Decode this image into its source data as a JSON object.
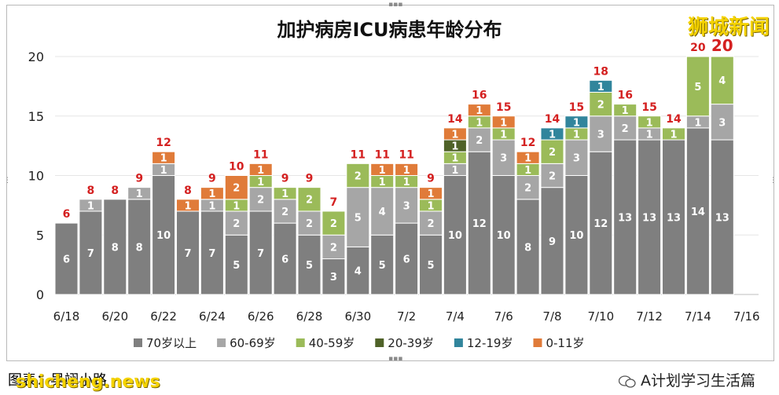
{
  "title": "加护病房ICU病患年龄分布",
  "watermark": "狮城新闻",
  "footer": {
    "source": "图表：吴翊小路",
    "site": "shicheng.news",
    "account": "A计划学习生活篇"
  },
  "colors": {
    "70+": "#7f7f7f",
    "60-69": "#a6a6a6",
    "40-59": "#9bbb59",
    "20-39": "#4f6228",
    "12-19": "#31859c",
    "0-11": "#e07b39",
    "total": "#d42020"
  },
  "chart_data": {
    "type": "bar",
    "stacked": true,
    "title": "加护病房ICU病患年龄分布",
    "ylim": [
      0,
      20
    ],
    "yticks": [
      0,
      5,
      10,
      15,
      20
    ],
    "xtick_labels": [
      "6/18",
      "6/20",
      "6/22",
      "6/24",
      "6/26",
      "6/28",
      "6/30",
      "7/2",
      "7/4",
      "7/6",
      "7/8",
      "7/10",
      "7/12",
      "7/14",
      "7/16"
    ],
    "categories": [
      "6/18",
      "6/19",
      "6/20",
      "6/21",
      "6/22",
      "6/23",
      "6/24",
      "6/25",
      "6/26",
      "6/27",
      "6/28",
      "6/29",
      "6/30",
      "7/1",
      "7/2",
      "7/3",
      "7/4",
      "7/5",
      "7/6",
      "7/7",
      "7/8",
      "7/9",
      "7/10",
      "7/11",
      "7/12",
      "7/13",
      "7/14",
      "7/15"
    ],
    "series": [
      {
        "name": "70岁以上",
        "key": "70+",
        "values": [
          6,
          7,
          8,
          8,
          10,
          7,
          7,
          5,
          7,
          6,
          5,
          3,
          4,
          5,
          6,
          5,
          10,
          12,
          10,
          8,
          9,
          10,
          12,
          13,
          13,
          13,
          14,
          13
        ]
      },
      {
        "name": "60-69岁",
        "key": "60-69",
        "values": [
          0,
          1,
          0,
          1,
          1,
          0,
          1,
          2,
          2,
          2,
          2,
          2,
          5,
          4,
          3,
          2,
          1,
          2,
          3,
          2,
          2,
          3,
          3,
          2,
          1,
          0,
          1,
          3
        ]
      },
      {
        "name": "40-59岁",
        "key": "40-59",
        "values": [
          0,
          0,
          0,
          0,
          0,
          0,
          0,
          1,
          1,
          1,
          2,
          2,
          2,
          1,
          1,
          1,
          1,
          1,
          1,
          1,
          2,
          1,
          2,
          1,
          1,
          1,
          5,
          4
        ]
      },
      {
        "name": "20-39岁",
        "key": "20-39",
        "values": [
          0,
          0,
          0,
          0,
          0,
          0,
          0,
          0,
          0,
          0,
          0,
          0,
          0,
          0,
          0,
          0,
          1,
          0,
          0,
          0,
          0,
          0,
          0,
          0,
          0,
          0,
          0,
          0
        ]
      },
      {
        "name": "12-19岁",
        "key": "12-19",
        "values": [
          0,
          0,
          0,
          0,
          0,
          0,
          0,
          0,
          0,
          0,
          0,
          0,
          0,
          0,
          0,
          0,
          0,
          0,
          0,
          0,
          1,
          1,
          1,
          0,
          0,
          0,
          0,
          0
        ]
      },
      {
        "name": "0-11岁",
        "key": "0-11",
        "values": [
          0,
          0,
          0,
          0,
          1,
          1,
          1,
          2,
          1,
          0,
          0,
          0,
          0,
          1,
          1,
          1,
          1,
          1,
          1,
          1,
          0,
          0,
          0,
          0,
          0,
          0,
          0,
          0
        ]
      }
    ],
    "totals": [
      6,
      8,
      8,
      9,
      12,
      8,
      9,
      10,
      11,
      9,
      9,
      7,
      11,
      11,
      11,
      9,
      14,
      16,
      15,
      12,
      14,
      15,
      18,
      16,
      15,
      14,
      20,
      20
    ],
    "legend": [
      "70岁以上",
      "60-69岁",
      "40-59岁",
      "20-39岁",
      "12-19岁",
      "0-11岁"
    ],
    "legend_position": "bottom",
    "grid": true
  }
}
